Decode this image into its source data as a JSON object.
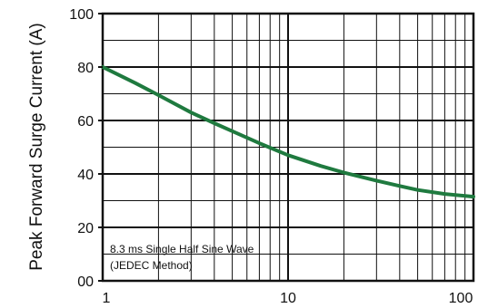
{
  "chart_data": {
    "type": "line",
    "title": "",
    "xlabel": "",
    "ylabel": "Peak Forward Surge Current (A)",
    "x_scale": "log",
    "xlim": [
      1,
      100
    ],
    "ylim": [
      0,
      100
    ],
    "x_ticks": [
      "1",
      "10",
      "100"
    ],
    "y_ticks": [
      "00",
      "20",
      "40",
      "60",
      "80",
      "100"
    ],
    "grid": true,
    "annotations": [
      "8.3 ms Single Half Sine Wave",
      "(JEDEC Method)"
    ],
    "series": [
      {
        "name": "",
        "color": "#1f7a3f",
        "x": [
          1,
          1.5,
          2,
          3,
          4,
          5,
          7,
          10,
          15,
          20,
          30,
          40,
          50,
          70,
          100
        ],
        "y": [
          80,
          74,
          69.5,
          63,
          59,
          56,
          51.5,
          47,
          43,
          40.5,
          37.5,
          35.5,
          34,
          32.5,
          31.5
        ]
      }
    ]
  }
}
